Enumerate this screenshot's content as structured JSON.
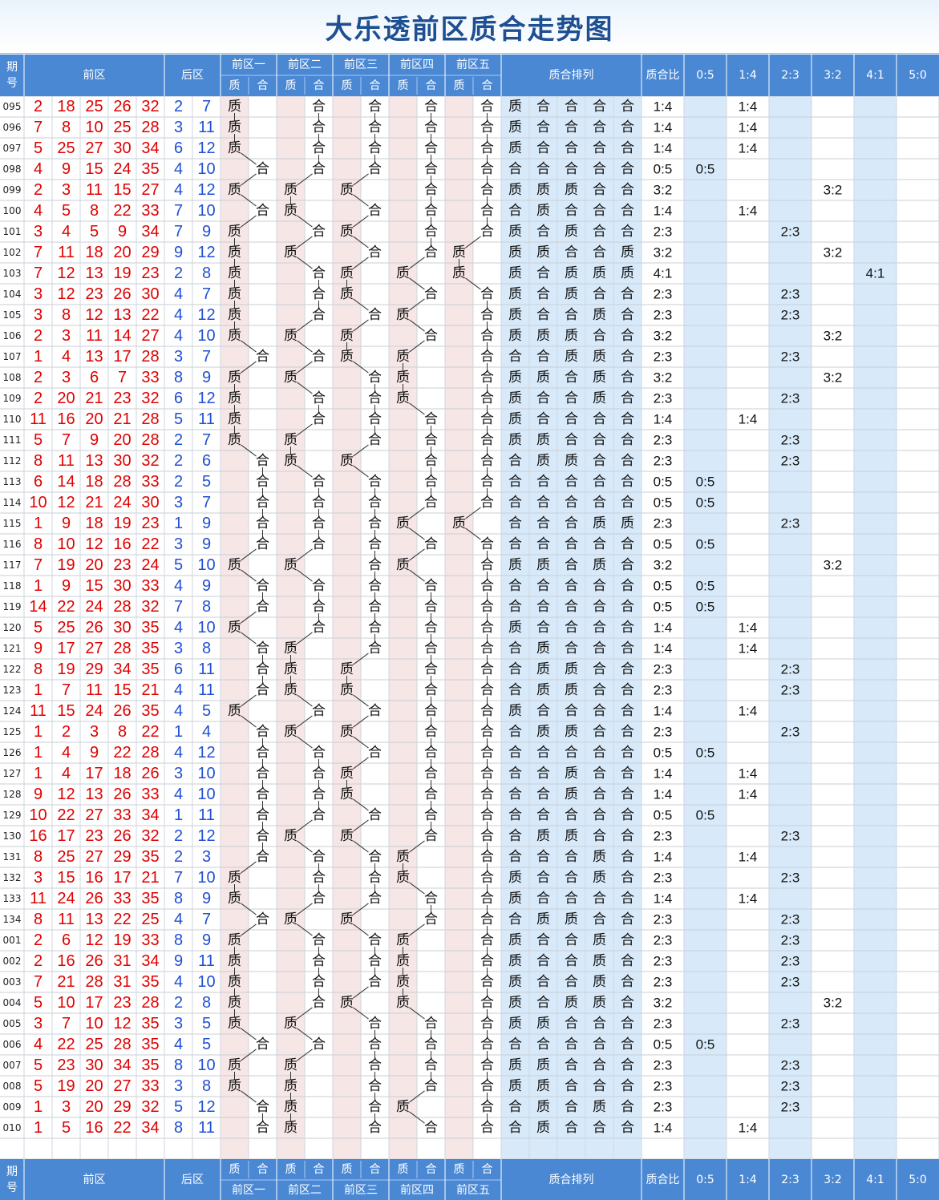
{
  "title": "大乐透前区质合走势图",
  "header": {
    "period": "期号",
    "front": "前区",
    "back": "后区",
    "zones": [
      "前区一",
      "前区二",
      "前区三",
      "前区四",
      "前区五"
    ],
    "prime": "质",
    "composite": "合",
    "pattern": "质合排列",
    "ratio": "质合比",
    "ratios": [
      "0:5",
      "1:4",
      "2:3",
      "3:2",
      "4:1",
      "5:0"
    ]
  },
  "colors": {
    "header_blue": "#4a88d4",
    "front_number_red": "#e00000",
    "back_number_blue": "#1f4fd6",
    "pink_column": "#f6e6e6",
    "light_blue_column": "#d8eafa",
    "line_gray": "#333333"
  },
  "chart_data": {
    "type": "table",
    "columns": [
      "期号",
      "前区",
      "后区",
      "前区一",
      "前区二",
      "前区三",
      "前区四",
      "前区五",
      "质合排列",
      "质合比"
    ],
    "rows": [
      {
        "issue": "095",
        "front": [
          2,
          18,
          25,
          26,
          32
        ],
        "back": [
          2,
          7
        ],
        "pattern": "质合合合合",
        "ratio": "1:4"
      },
      {
        "issue": "096",
        "front": [
          7,
          8,
          10,
          25,
          28
        ],
        "back": [
          3,
          11
        ],
        "pattern": "质合合合合",
        "ratio": "1:4"
      },
      {
        "issue": "097",
        "front": [
          5,
          25,
          27,
          30,
          34
        ],
        "back": [
          6,
          12
        ],
        "pattern": "质合合合合",
        "ratio": "1:4"
      },
      {
        "issue": "098",
        "front": [
          4,
          9,
          15,
          24,
          35
        ],
        "back": [
          4,
          10
        ],
        "pattern": "合合合合合",
        "ratio": "0:5"
      },
      {
        "issue": "099",
        "front": [
          2,
          3,
          11,
          15,
          27
        ],
        "back": [
          4,
          12
        ],
        "pattern": "质质质合合",
        "ratio": "3:2"
      },
      {
        "issue": "100",
        "front": [
          4,
          5,
          8,
          22,
          33
        ],
        "back": [
          7,
          10
        ],
        "pattern": "合质合合合",
        "ratio": "1:4"
      },
      {
        "issue": "101",
        "front": [
          3,
          4,
          5,
          9,
          34
        ],
        "back": [
          7,
          9
        ],
        "pattern": "质合质合合",
        "ratio": "2:3"
      },
      {
        "issue": "102",
        "front": [
          7,
          11,
          18,
          20,
          29
        ],
        "back": [
          9,
          12
        ],
        "pattern": "质质合合质",
        "ratio": "3:2"
      },
      {
        "issue": "103",
        "front": [
          7,
          12,
          13,
          19,
          23
        ],
        "back": [
          2,
          8
        ],
        "pattern": "质合质质质",
        "ratio": "4:1"
      },
      {
        "issue": "104",
        "front": [
          3,
          12,
          23,
          26,
          30
        ],
        "back": [
          4,
          7
        ],
        "pattern": "质合质合合",
        "ratio": "2:3"
      },
      {
        "issue": "105",
        "front": [
          3,
          8,
          12,
          13,
          22
        ],
        "back": [
          4,
          12
        ],
        "pattern": "质合合质合",
        "ratio": "2:3"
      },
      {
        "issue": "106",
        "front": [
          2,
          3,
          11,
          14,
          27
        ],
        "back": [
          4,
          10
        ],
        "pattern": "质质质合合",
        "ratio": "3:2"
      },
      {
        "issue": "107",
        "front": [
          1,
          4,
          13,
          17,
          28
        ],
        "back": [
          3,
          7
        ],
        "pattern": "合合质质合",
        "ratio": "2:3"
      },
      {
        "issue": "108",
        "front": [
          2,
          3,
          6,
          7,
          33
        ],
        "back": [
          8,
          9
        ],
        "pattern": "质质合质合",
        "ratio": "3:2"
      },
      {
        "issue": "109",
        "front": [
          2,
          20,
          21,
          23,
          32
        ],
        "back": [
          6,
          12
        ],
        "pattern": "质合合质合",
        "ratio": "2:3"
      },
      {
        "issue": "110",
        "front": [
          11,
          16,
          20,
          21,
          28
        ],
        "back": [
          5,
          11
        ],
        "pattern": "质合合合合",
        "ratio": "1:4"
      },
      {
        "issue": "111",
        "front": [
          5,
          7,
          9,
          20,
          28
        ],
        "back": [
          2,
          7
        ],
        "pattern": "质质合合合",
        "ratio": "2:3"
      },
      {
        "issue": "112",
        "front": [
          8,
          11,
          13,
          30,
          32
        ],
        "back": [
          2,
          6
        ],
        "pattern": "合质质合合",
        "ratio": "2:3"
      },
      {
        "issue": "113",
        "front": [
          6,
          14,
          18,
          28,
          33
        ],
        "back": [
          2,
          5
        ],
        "pattern": "合合合合合",
        "ratio": "0:5"
      },
      {
        "issue": "114",
        "front": [
          10,
          12,
          21,
          24,
          30
        ],
        "back": [
          3,
          7
        ],
        "pattern": "合合合合合",
        "ratio": "0:5"
      },
      {
        "issue": "115",
        "front": [
          1,
          9,
          18,
          19,
          23
        ],
        "back": [
          1,
          9
        ],
        "pattern": "合合合质质",
        "ratio": "2:3"
      },
      {
        "issue": "116",
        "front": [
          8,
          10,
          12,
          16,
          22
        ],
        "back": [
          3,
          9
        ],
        "pattern": "合合合合合",
        "ratio": "0:5"
      },
      {
        "issue": "117",
        "front": [
          7,
          19,
          20,
          23,
          24
        ],
        "back": [
          5,
          10
        ],
        "pattern": "质质合质合",
        "ratio": "3:2"
      },
      {
        "issue": "118",
        "front": [
          1,
          9,
          15,
          30,
          33
        ],
        "back": [
          4,
          9
        ],
        "pattern": "合合合合合",
        "ratio": "0:5"
      },
      {
        "issue": "119",
        "front": [
          14,
          22,
          24,
          28,
          32
        ],
        "back": [
          7,
          8
        ],
        "pattern": "合合合合合",
        "ratio": "0:5"
      },
      {
        "issue": "120",
        "front": [
          5,
          25,
          26,
          30,
          35
        ],
        "back": [
          4,
          10
        ],
        "pattern": "质合合合合",
        "ratio": "1:4"
      },
      {
        "issue": "121",
        "front": [
          9,
          17,
          27,
          28,
          35
        ],
        "back": [
          3,
          8
        ],
        "pattern": "合质合合合",
        "ratio": "1:4"
      },
      {
        "issue": "122",
        "front": [
          8,
          19,
          29,
          34,
          35
        ],
        "back": [
          6,
          11
        ],
        "pattern": "合质质合合",
        "ratio": "2:3"
      },
      {
        "issue": "123",
        "front": [
          1,
          7,
          11,
          15,
          21
        ],
        "back": [
          4,
          11
        ],
        "pattern": "合质质合合",
        "ratio": "2:3"
      },
      {
        "issue": "124",
        "front": [
          11,
          15,
          24,
          26,
          35
        ],
        "back": [
          4,
          5
        ],
        "pattern": "质合合合合",
        "ratio": "1:4"
      },
      {
        "issue": "125",
        "front": [
          1,
          2,
          3,
          8,
          22
        ],
        "back": [
          1,
          4
        ],
        "pattern": "合质质合合",
        "ratio": "2:3"
      },
      {
        "issue": "126",
        "front": [
          1,
          4,
          9,
          22,
          28
        ],
        "back": [
          4,
          12
        ],
        "pattern": "合合合合合",
        "ratio": "0:5"
      },
      {
        "issue": "127",
        "front": [
          1,
          4,
          17,
          18,
          26
        ],
        "back": [
          3,
          10
        ],
        "pattern": "合合质合合",
        "ratio": "1:4"
      },
      {
        "issue": "128",
        "front": [
          9,
          12,
          13,
          26,
          33
        ],
        "back": [
          4,
          10
        ],
        "pattern": "合合质合合",
        "ratio": "1:4"
      },
      {
        "issue": "129",
        "front": [
          10,
          22,
          27,
          33,
          34
        ],
        "back": [
          1,
          11
        ],
        "pattern": "合合合合合",
        "ratio": "0:5"
      },
      {
        "issue": "130",
        "front": [
          16,
          17,
          23,
          26,
          32
        ],
        "back": [
          2,
          12
        ],
        "pattern": "合质质合合",
        "ratio": "2:3"
      },
      {
        "issue": "131",
        "front": [
          8,
          25,
          27,
          29,
          35
        ],
        "back": [
          2,
          3
        ],
        "pattern": "合合合质合",
        "ratio": "1:4"
      },
      {
        "issue": "132",
        "front": [
          3,
          15,
          16,
          17,
          21
        ],
        "back": [
          7,
          10
        ],
        "pattern": "质合合质合",
        "ratio": "2:3"
      },
      {
        "issue": "133",
        "front": [
          11,
          24,
          26,
          33,
          35
        ],
        "back": [
          8,
          9
        ],
        "pattern": "质合合合合",
        "ratio": "1:4"
      },
      {
        "issue": "134",
        "front": [
          8,
          11,
          13,
          22,
          25
        ],
        "back": [
          4,
          7
        ],
        "pattern": "合质质合合",
        "ratio": "2:3"
      },
      {
        "issue": "001",
        "front": [
          2,
          6,
          12,
          19,
          33
        ],
        "back": [
          8,
          9
        ],
        "pattern": "质合合质合",
        "ratio": "2:3"
      },
      {
        "issue": "002",
        "front": [
          2,
          16,
          26,
          31,
          34
        ],
        "back": [
          9,
          11
        ],
        "pattern": "质合合质合",
        "ratio": "2:3"
      },
      {
        "issue": "003",
        "front": [
          7,
          21,
          28,
          31,
          35
        ],
        "back": [
          4,
          10
        ],
        "pattern": "质合合质合",
        "ratio": "2:3"
      },
      {
        "issue": "004",
        "front": [
          5,
          10,
          17,
          23,
          28
        ],
        "back": [
          2,
          8
        ],
        "pattern": "质合质质合",
        "ratio": "3:2"
      },
      {
        "issue": "005",
        "front": [
          3,
          7,
          10,
          12,
          35
        ],
        "back": [
          3,
          5
        ],
        "pattern": "质质合合合",
        "ratio": "2:3"
      },
      {
        "issue": "006",
        "front": [
          4,
          22,
          25,
          28,
          35
        ],
        "back": [
          4,
          5
        ],
        "pattern": "合合合合合",
        "ratio": "0:5"
      },
      {
        "issue": "007",
        "front": [
          5,
          23,
          30,
          34,
          35
        ],
        "back": [
          8,
          10
        ],
        "pattern": "质质合合合",
        "ratio": "2:3"
      },
      {
        "issue": "008",
        "front": [
          5,
          19,
          20,
          27,
          33
        ],
        "back": [
          3,
          8
        ],
        "pattern": "质质合合合",
        "ratio": "2:3"
      },
      {
        "issue": "009",
        "front": [
          1,
          3,
          20,
          29,
          32
        ],
        "back": [
          5,
          12
        ],
        "pattern": "合质合质合",
        "ratio": "2:3"
      },
      {
        "issue": "010",
        "front": [
          1,
          5,
          16,
          22,
          34
        ],
        "back": [
          8,
          11
        ],
        "pattern": "合质合合合",
        "ratio": "1:4"
      }
    ]
  }
}
